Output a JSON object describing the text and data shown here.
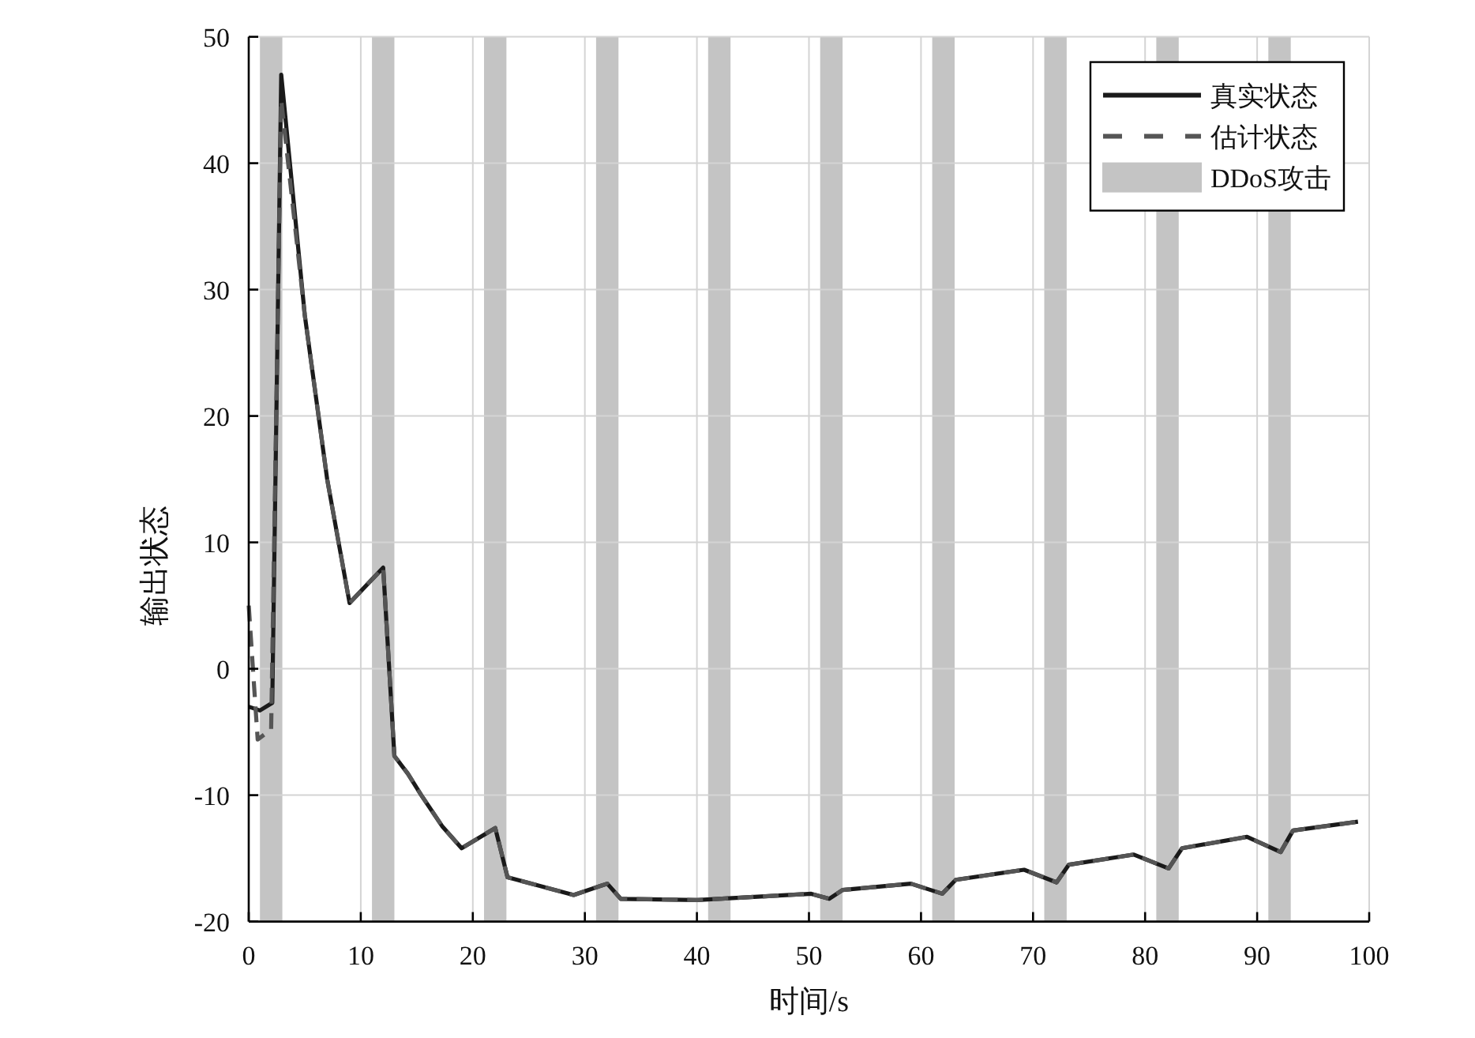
{
  "chart_data": {
    "type": "line",
    "xlabel": "时间/s",
    "ylabel": "输出状态",
    "xlim": [
      0,
      100
    ],
    "ylim": [
      -20,
      50
    ],
    "xticks": [
      0,
      10,
      20,
      30,
      40,
      50,
      60,
      70,
      80,
      90,
      100
    ],
    "yticks": [
      -20,
      -10,
      0,
      10,
      20,
      30,
      40,
      50
    ],
    "grid": true,
    "legend": "top right",
    "bands": [
      {
        "axis": "x",
        "from": 1,
        "to": 3,
        "color": "#c4c4c4"
      },
      {
        "axis": "x",
        "from": 11,
        "to": 13,
        "color": "#c4c4c4"
      },
      {
        "axis": "x",
        "from": 21,
        "to": 23,
        "color": "#c4c4c4"
      },
      {
        "axis": "x",
        "from": 31,
        "to": 33,
        "color": "#c4c4c4"
      },
      {
        "axis": "x",
        "from": 41,
        "to": 43,
        "color": "#c4c4c4"
      },
      {
        "axis": "x",
        "from": 51,
        "to": 53,
        "color": "#c4c4c4"
      },
      {
        "axis": "x",
        "from": 61,
        "to": 63,
        "color": "#c4c4c4"
      },
      {
        "axis": "x",
        "from": 71,
        "to": 73,
        "color": "#c4c4c4"
      },
      {
        "axis": "x",
        "from": 81,
        "to": 83,
        "color": "#c4c4c4"
      },
      {
        "axis": "x",
        "from": 91,
        "to": 93,
        "label": "DDoS攻击",
        "color": "#c4c4c4"
      }
    ],
    "series": [
      {
        "name": "真实状态",
        "color": "#1a1a1a",
        "line_style": "solid",
        "x": [
          0,
          1,
          2.1,
          2.9,
          5,
          7,
          9,
          12,
          13,
          14.2,
          15.4,
          17.3,
          19,
          22,
          23.1,
          29,
          32,
          33.2,
          40,
          50.2,
          51.8,
          53,
          59.1,
          61.9,
          63.1,
          69.2,
          72.1,
          73.2,
          79,
          82.1,
          83.3,
          89.1,
          92.1,
          93.2,
          99
        ],
        "values": [
          -3,
          -3.3,
          -2.7,
          47,
          28,
          15,
          5.2,
          8,
          -6.9,
          -8.3,
          -10,
          -12.5,
          -14.2,
          -12.6,
          -16.5,
          -17.9,
          -17,
          -18.2,
          -18.3,
          -17.8,
          -18.2,
          -17.5,
          -17,
          -17.8,
          -16.7,
          -15.9,
          -16.9,
          -15.5,
          -14.7,
          -15.8,
          -14.2,
          -13.3,
          -14.5,
          -12.8,
          -12.1
        ]
      },
      {
        "name": "估计状态",
        "color": "#555555",
        "line_style": "dashed",
        "x": [
          0,
          0.6,
          0.8,
          2,
          2.9,
          5,
          7,
          9,
          12,
          13,
          14.2,
          15.4,
          17.3,
          19,
          22,
          23.1,
          29,
          32,
          33.2,
          40,
          50.2,
          51.8,
          53,
          59.1,
          61.9,
          63.1,
          69.2,
          72.1,
          73.2,
          79,
          82.1,
          83.3,
          89.1,
          92.1,
          93.2,
          99
        ],
        "values": [
          5,
          -3,
          -5.6,
          -4.8,
          45,
          28,
          15,
          5.2,
          8,
          -6.9,
          -8.3,
          -10,
          -12.5,
          -14.2,
          -12.6,
          -16.5,
          -17.9,
          -17,
          -18.2,
          -18.3,
          -17.8,
          -18.2,
          -17.5,
          -17,
          -17.8,
          -16.7,
          -15.9,
          -16.9,
          -15.5,
          -14.7,
          -15.8,
          -14.2,
          -13.3,
          -14.5,
          -12.8,
          -12.1
        ]
      }
    ]
  }
}
